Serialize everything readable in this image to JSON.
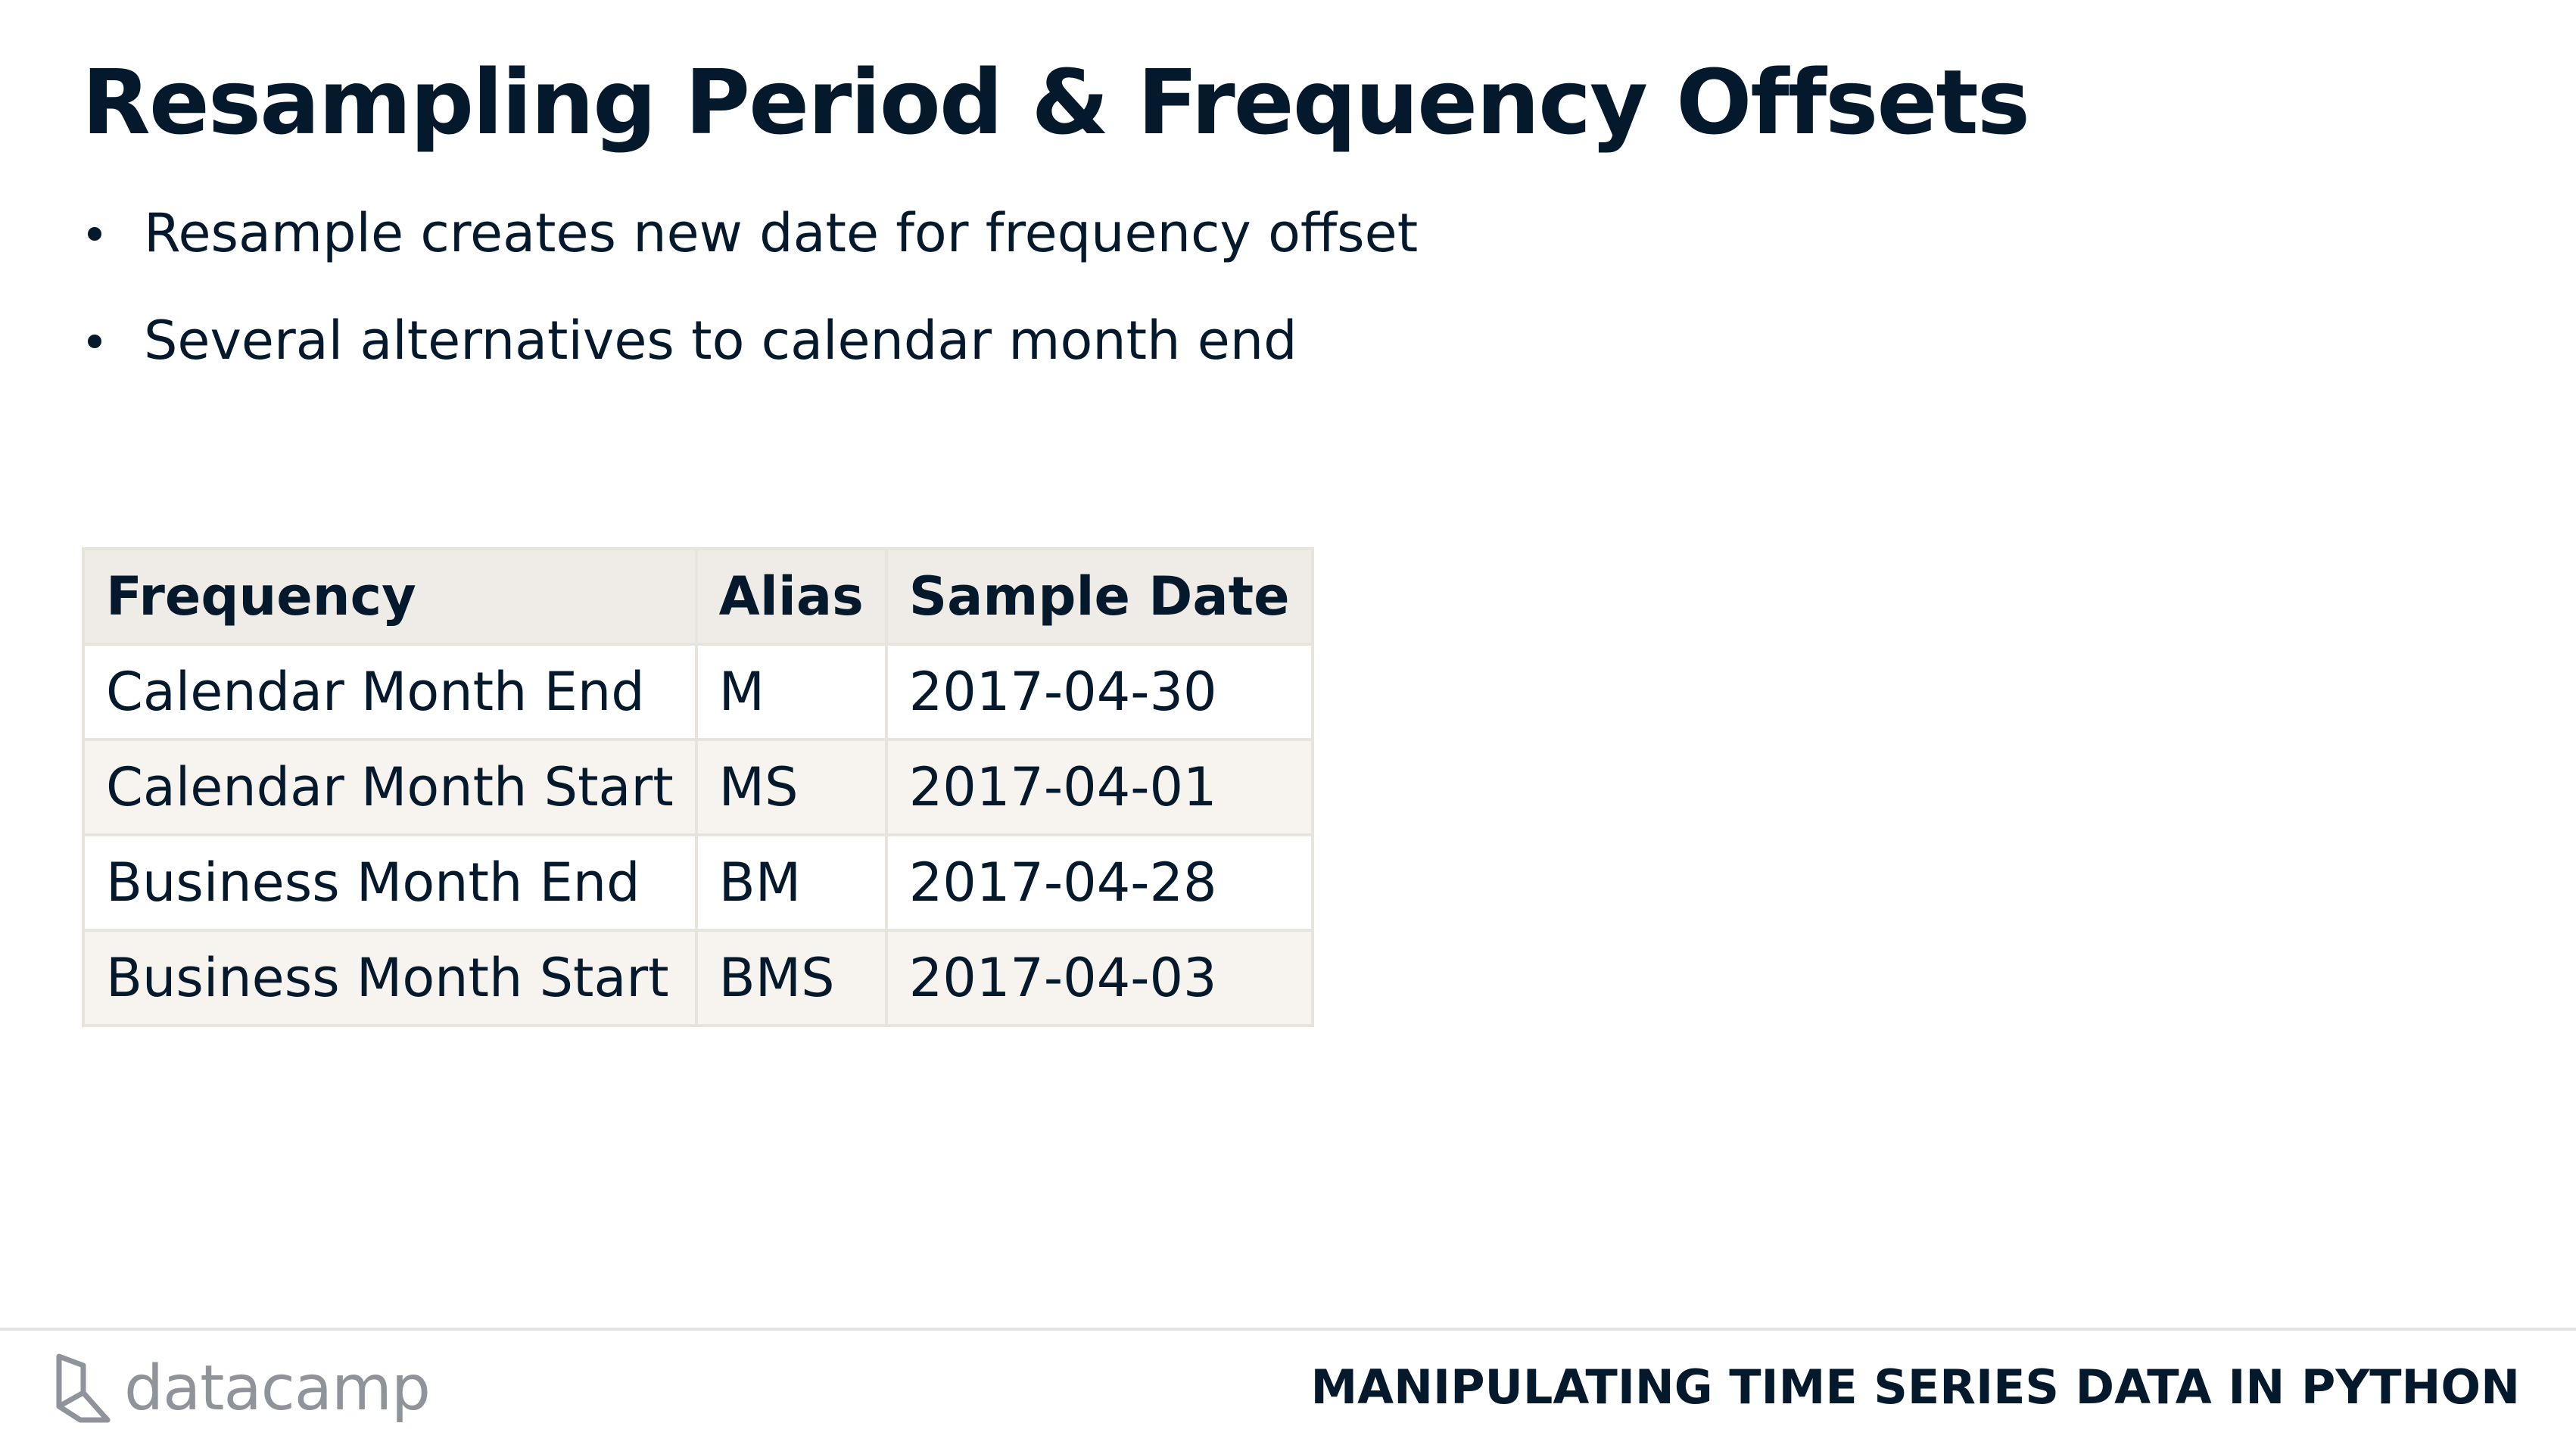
{
  "slide": {
    "title": "Resampling Period & Frequency Offsets",
    "bullets": [
      "Resample creates new date for frequency offset",
      "Several alternatives to calendar month end"
    ]
  },
  "table": {
    "headers": [
      "Frequency",
      "Alias",
      "Sample Date"
    ],
    "rows": [
      [
        "Calendar Month End",
        "M",
        "2017-04-30"
      ],
      [
        "Calendar Month Start",
        "MS",
        "2017-04-01"
      ],
      [
        "Business Month End",
        "BM",
        "2017-04-28"
      ],
      [
        "Business Month Start",
        "BMS",
        "2017-04-03"
      ]
    ]
  },
  "footer": {
    "logo_text": "datacamp",
    "course_title": "MANIPULATING TIME SERIES DATA IN PYTHON"
  },
  "colors": {
    "text": "#05192d",
    "header_bg": "#efebe6",
    "alt_row_bg": "#f7f3ee",
    "logo_gray": "#8f949a"
  },
  "icons": [
    "datacamp-logo-icon"
  ]
}
